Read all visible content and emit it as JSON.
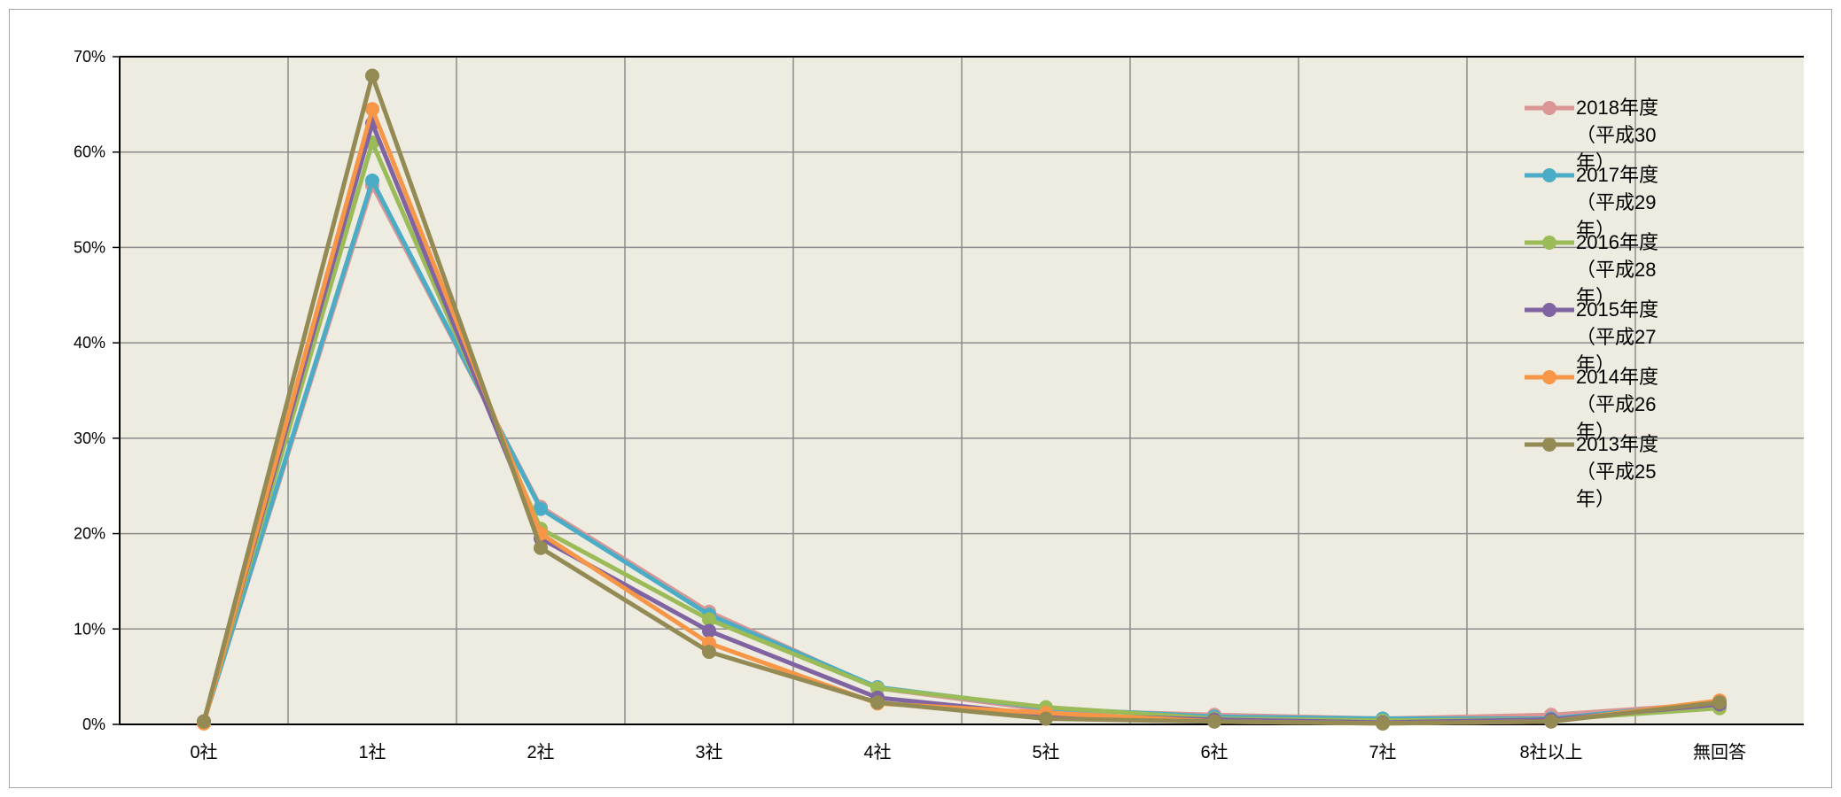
{
  "chart_data": {
    "type": "line",
    "categories": [
      "0社",
      "1社",
      "2社",
      "3社",
      "4社",
      "5社",
      "6社",
      "7社",
      "8社以上",
      "無回答"
    ],
    "ylim": [
      0,
      70
    ],
    "y_ticks": [
      "0%",
      "10%",
      "20%",
      "30%",
      "40%",
      "50%",
      "60%",
      "70%"
    ],
    "y_unit": "%",
    "grid": true,
    "plot_background": "#EEEBE0",
    "legend_position": "right",
    "series": [
      {
        "name": "2018年度（平成30年）",
        "color": "#D99694",
        "values": [
          0.3,
          56.5,
          22.8,
          11.8,
          3.8,
          1.5,
          1.0,
          0.6,
          1.0,
          2.2
        ]
      },
      {
        "name": "2017年度（平成29年）",
        "color": "#4BACC6",
        "values": [
          0.3,
          57.0,
          22.6,
          11.5,
          3.9,
          1.7,
          0.8,
          0.6,
          0.6,
          2.3
        ]
      },
      {
        "name": "2016年度（平成28年）",
        "color": "#9BBB59",
        "values": [
          0.3,
          61.0,
          20.5,
          11.0,
          3.8,
          1.8,
          0.6,
          0.4,
          0.5,
          1.7
        ]
      },
      {
        "name": "2015年度（平成27年）",
        "color": "#8064A2",
        "values": [
          0.3,
          63.0,
          19.5,
          9.8,
          2.8,
          1.0,
          0.5,
          0.2,
          0.5,
          2.1
        ]
      },
      {
        "name": "2014年度（平成26年）",
        "color": "#F79646",
        "values": [
          0.1,
          64.5,
          20.0,
          8.5,
          2.2,
          1.2,
          0.3,
          0.1,
          0.3,
          2.5
        ]
      },
      {
        "name": "2013年度（平成25年）",
        "color": "#948A54",
        "values": [
          0.3,
          68.0,
          18.5,
          7.6,
          2.3,
          0.6,
          0.3,
          0.1,
          0.3,
          2.3
        ]
      }
    ]
  }
}
